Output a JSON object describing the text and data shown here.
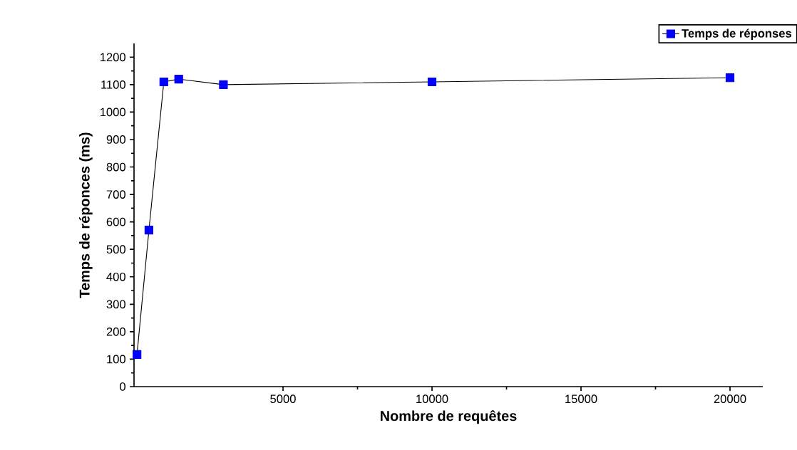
{
  "chart_data": {
    "type": "line",
    "xlabel": "Nombre de requêtes",
    "ylabel": "Temps de réponces (ms)",
    "xlim": [
      0,
      21100
    ],
    "xticks": [
      5000,
      10000,
      15000,
      20000
    ],
    "ylim": [
      0,
      1250
    ],
    "yticks": [
      0,
      100,
      200,
      300,
      400,
      500,
      600,
      700,
      800,
      900,
      1000,
      1100,
      1200
    ],
    "legend": "top right",
    "marker": "square",
    "line_style": "solid",
    "grid": false,
    "series": [
      {
        "name": "Temps de réponses",
        "color": "#0000ff",
        "x": [
          100,
          500,
          1000,
          1500,
          3000,
          10000,
          20000
        ],
        "values": [
          117,
          570,
          1110,
          1120,
          1100,
          1110,
          1125
        ]
      }
    ]
  }
}
